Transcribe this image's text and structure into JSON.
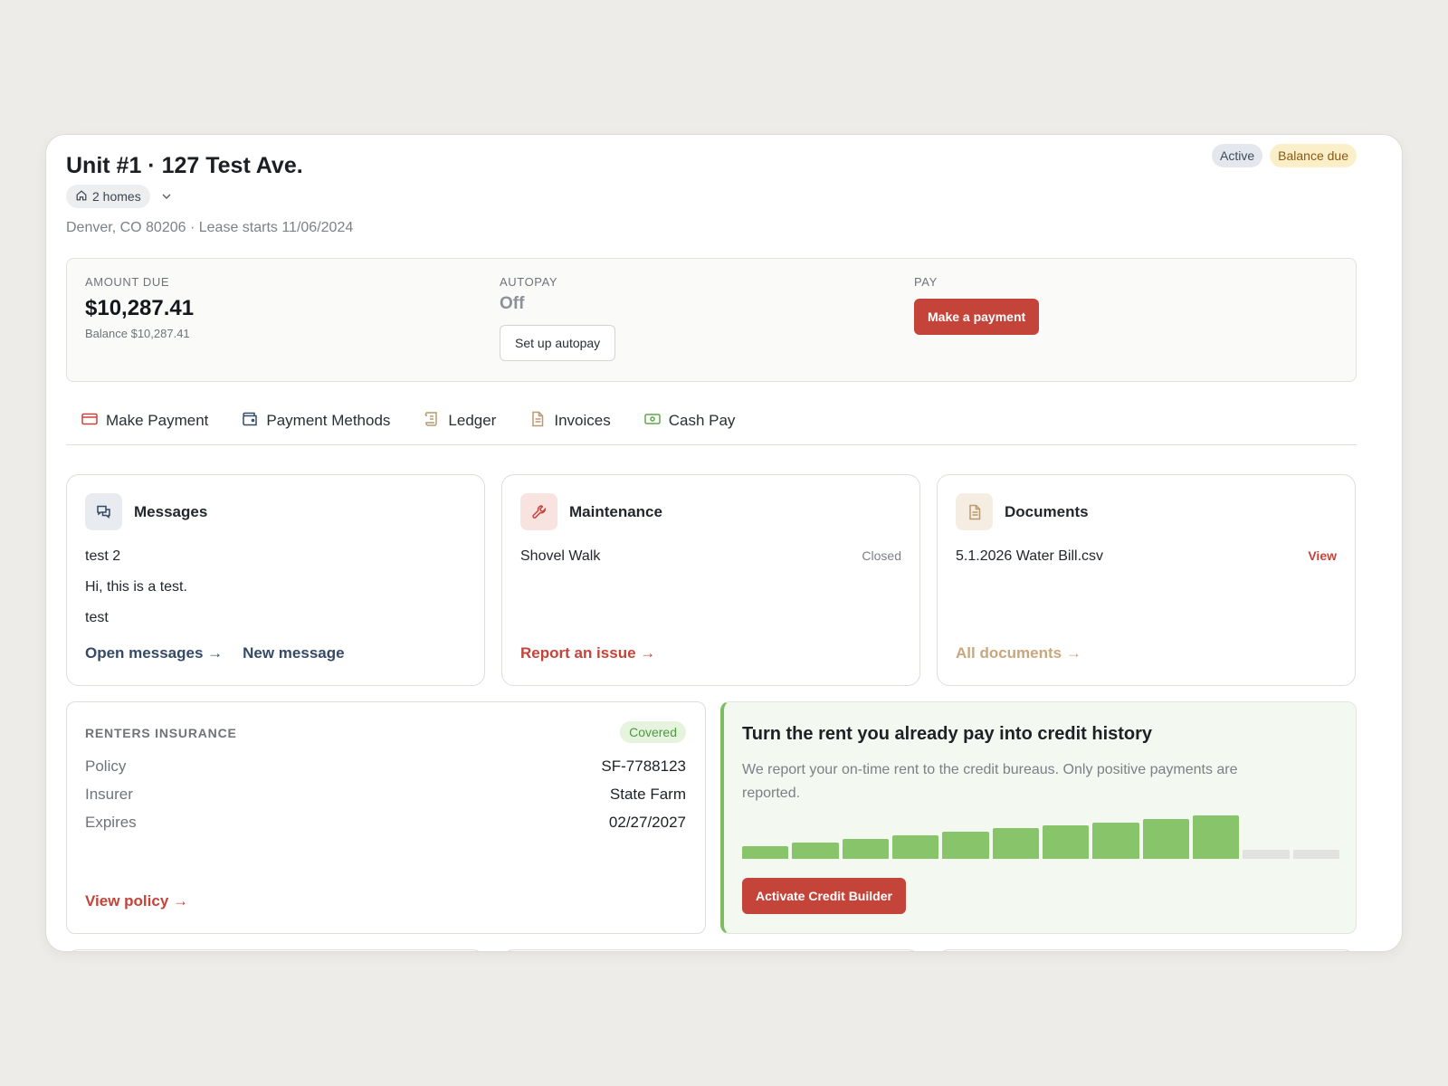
{
  "header": {
    "title": "Unit #1 · 127 Test Ave.",
    "homes_label": "2 homes",
    "subline": "Denver, CO 80206 · Lease starts 11/06/2024",
    "badges": {
      "active": "Active",
      "due": "Balance due"
    }
  },
  "summary": {
    "amount_label": "AMOUNT DUE",
    "amount": "$10,287.41",
    "balance": "Balance $10,287.41",
    "autopay_label": "AUTOPAY",
    "autopay_value": "Off",
    "autopay_button": "Set up autopay",
    "pay_label": "PAY",
    "pay_button": "Make a payment"
  },
  "tabs": [
    {
      "label": "Make Payment",
      "icon": "card-icon"
    },
    {
      "label": "Payment Methods",
      "icon": "wallet-icon"
    },
    {
      "label": "Ledger",
      "icon": "scroll-icon"
    },
    {
      "label": "Invoices",
      "icon": "document-icon"
    },
    {
      "label": "Cash Pay",
      "icon": "cash-icon"
    }
  ],
  "messages": {
    "title": "Messages",
    "items": [
      "test 2",
      "Hi, this is a test.",
      "test"
    ],
    "open_link": "Open messages →",
    "new_link": "New message"
  },
  "maintenance": {
    "title": "Maintenance",
    "item": "Shovel Walk",
    "status": "Closed",
    "report_link": "Report an issue →"
  },
  "documents": {
    "title": "Documents",
    "item": "5.1.2026 Water Bill.csv",
    "view": "View",
    "all_link": "All documents →"
  },
  "insurance": {
    "label": "RENTERS INSURANCE",
    "badge": "Covered",
    "rows": [
      {
        "k": "Policy",
        "v": "SF-7788123"
      },
      {
        "k": "Insurer",
        "v": "State Farm"
      },
      {
        "k": "Expires",
        "v": "02/27/2027"
      }
    ],
    "link": "View policy →"
  },
  "credit": {
    "title": "Turn the rent you already pay into credit history",
    "description": "We report your on-time rent to the credit bureaus. Only positive payments are reported.",
    "button": "Activate Credit Builder",
    "bar_levels": [
      0.3,
      0.38,
      0.46,
      0.54,
      0.62,
      0.7,
      0.78,
      0.84,
      0.92,
      1.0,
      0.2,
      0.2
    ],
    "bar_active_count": 10,
    "colors": {
      "active": "#88c46a",
      "inactive": "#e2e2df"
    }
  },
  "colors": {
    "accent_red": "#c5443a",
    "navy_link": "#344a66",
    "tan_link": "#c9a77c",
    "credit_green": "#7cbd62"
  }
}
